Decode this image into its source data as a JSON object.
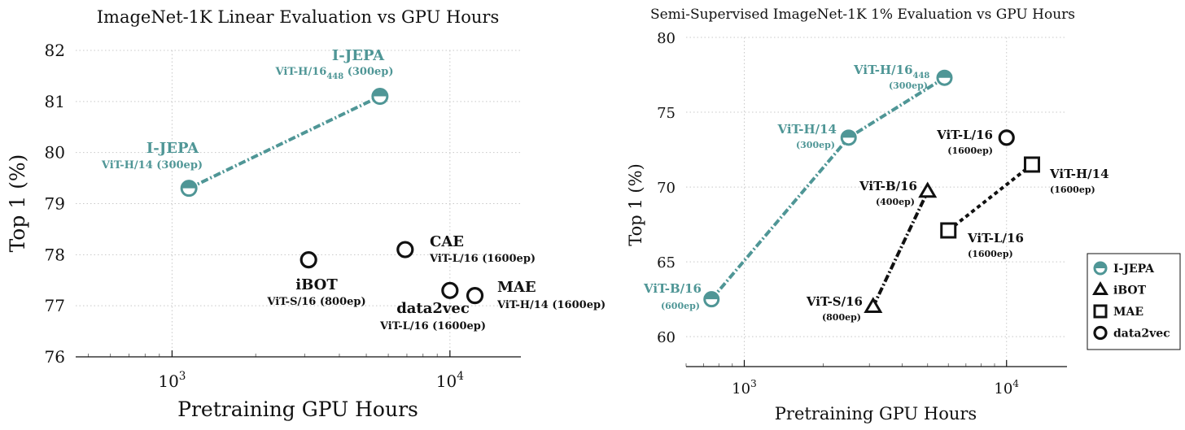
{
  "colors": {
    "ijepa": "#4f9696",
    "other": "#111111"
  },
  "chart_data": [
    {
      "type": "scatter",
      "title": "ImageNet-1K Linear Evaluation vs GPU Hours",
      "xlabel": "Pretraining GPU Hours",
      "ylabel": "Top 1 (%)",
      "x_scale": "log",
      "xlim": [
        450,
        18000
      ],
      "ylim": [
        76,
        82
      ],
      "yticks": [
        76,
        77,
        78,
        79,
        80,
        81,
        82
      ],
      "xticks": [
        {
          "value": 1000,
          "base": "10",
          "exp": "3"
        },
        {
          "value": 10000,
          "base": "10",
          "exp": "4"
        }
      ],
      "grid": true,
      "points": [
        {
          "x": 1150,
          "y": 79.3,
          "marker": "half-circle",
          "color": "#4f9696",
          "name": "I-JEPA",
          "sub": "ViT-H/14 (300ep)"
        },
        {
          "x": 5600,
          "y": 81.1,
          "marker": "half-circle",
          "color": "#4f9696",
          "name": "I-JEPA",
          "sub": "ViT-H/16",
          "sub_index": "448",
          "sub_suffix": " (300ep)"
        },
        {
          "x": 3100,
          "y": 77.9,
          "marker": "circle",
          "color": "#111111",
          "name": "iBOT",
          "sub": "ViT-S/16 (800ep)"
        },
        {
          "x": 6900,
          "y": 78.1,
          "marker": "circle",
          "color": "#111111",
          "name": "CAE",
          "sub": "ViT-L/16 (1600ep)"
        },
        {
          "x": 10000,
          "y": 77.3,
          "marker": "circle",
          "color": "#111111",
          "name": "data2vec",
          "sub": "ViT-L/16 (1600ep)"
        },
        {
          "x": 12300,
          "y": 77.2,
          "marker": "circle",
          "color": "#111111",
          "name": "MAE",
          "sub": "ViT-H/14 (1600ep)"
        }
      ],
      "lines": [
        {
          "x": [
            1150,
            5600
          ],
          "y": [
            79.3,
            81.1
          ],
          "color": "#4f9696"
        }
      ]
    },
    {
      "type": "scatter",
      "title": "Semi-Supervised ImageNet-1K 1% Evaluation vs GPU Hours",
      "xlabel": "Pretraining GPU Hours",
      "ylabel": "Top 1 (%)",
      "x_scale": "log",
      "xlim": [
        600,
        17000
      ],
      "ylim": [
        58,
        80
      ],
      "yticks": [
        60,
        65,
        70,
        75,
        80
      ],
      "xticks": [
        {
          "value": 1000,
          "base": "10",
          "exp": "3"
        },
        {
          "value": 10000,
          "base": "10",
          "exp": "4"
        }
      ],
      "grid": true,
      "series": [
        {
          "name": "I-JEPA",
          "marker": "half-circle",
          "color": "#4f9696",
          "points": [
            {
              "x": 750,
              "y": 62.5,
              "label": "ViT-B/16",
              "sub": "(600ep)"
            },
            {
              "x": 2500,
              "y": 73.3,
              "label": "ViT-H/14",
              "sub": "(300ep)"
            },
            {
              "x": 5800,
              "y": 77.3,
              "label": "ViT-H/16",
              "label_index": "448",
              "sub": "(300ep)"
            }
          ]
        },
        {
          "name": "iBOT",
          "marker": "triangle",
          "color": "#111111",
          "points": [
            {
              "x": 3100,
              "y": 62.0,
              "label": "ViT-S/16",
              "sub": "(800ep)"
            },
            {
              "x": 5000,
              "y": 69.7,
              "label": "ViT-B/16",
              "sub": "(400ep)"
            }
          ]
        },
        {
          "name": "MAE",
          "marker": "square",
          "color": "#111111",
          "points": [
            {
              "x": 6000,
              "y": 67.1,
              "label": "ViT-L/16",
              "sub": "(1600ep)"
            },
            {
              "x": 12500,
              "y": 71.5,
              "label": "ViT-H/14",
              "sub": "(1600ep)"
            }
          ]
        },
        {
          "name": "data2vec",
          "marker": "circle",
          "color": "#111111",
          "points": [
            {
              "x": 10000,
              "y": 73.3,
              "label": "ViT-L/16",
              "sub": "(1600ep)"
            }
          ]
        }
      ],
      "legend": {
        "position": "outside-right-bottom",
        "entries": [
          "I-JEPA",
          "iBOT",
          "MAE",
          "data2vec"
        ]
      }
    }
  ]
}
